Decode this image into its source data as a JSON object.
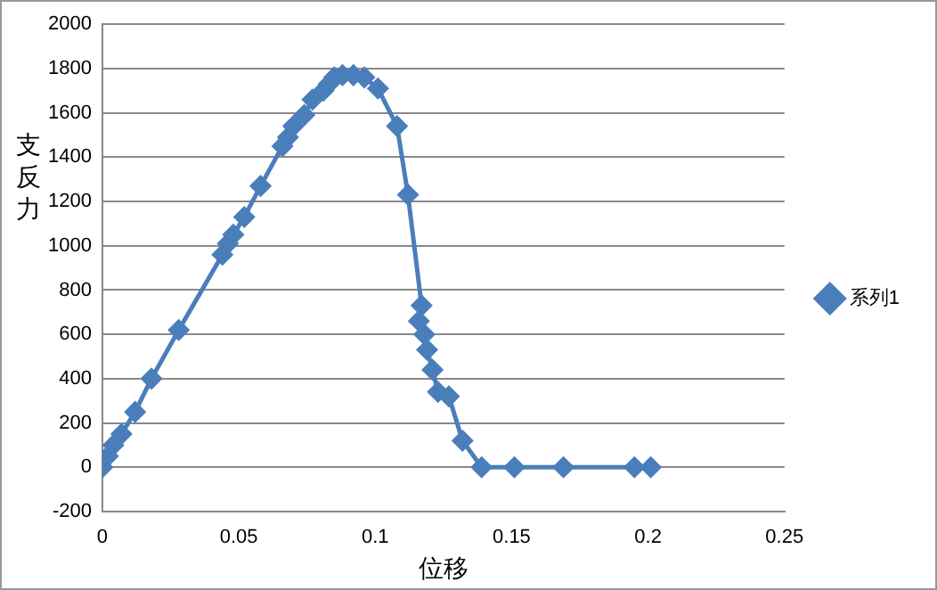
{
  "chart_data": {
    "type": "line",
    "xlabel": "位移",
    "ylabel": "支反力",
    "x": [
      0,
      0.002,
      0.004,
      0.007,
      0.012,
      0.018,
      0.028,
      0.044,
      0.046,
      0.048,
      0.052,
      0.058,
      0.066,
      0.068,
      0.07,
      0.074,
      0.077,
      0.081,
      0.083,
      0.085,
      0.088,
      0.092,
      0.096,
      0.101,
      0.108,
      0.112,
      0.117,
      0.116,
      0.118,
      0.119,
      0.121,
      0.123,
      0.127,
      0.132,
      0.139,
      0.151,
      0.169,
      0.195,
      0.201
    ],
    "series": [
      {
        "name": "系列1",
        "color": "#4a7ebb",
        "values": [
          0,
          50,
          100,
          150,
          250,
          400,
          620,
          960,
          1010,
          1050,
          1130,
          1270,
          1450,
          1490,
          1540,
          1590,
          1660,
          1700,
          1730,
          1760,
          1770,
          1770,
          1760,
          1710,
          1540,
          1230,
          730,
          660,
          600,
          530,
          440,
          340,
          320,
          120,
          0,
          0,
          0,
          0,
          0
        ]
      }
    ],
    "xlim": [
      0,
      0.25
    ],
    "xticks": [
      0,
      0.05,
      0.1,
      0.15,
      0.2,
      0.25
    ],
    "ylim": [
      -200,
      2000
    ],
    "yticks": [
      -200,
      0,
      200,
      400,
      600,
      800,
      1000,
      1200,
      1400,
      1600,
      1800,
      2000
    ],
    "grid": "y",
    "legend": "right",
    "marker": "diamond",
    "line_style": "solid"
  }
}
